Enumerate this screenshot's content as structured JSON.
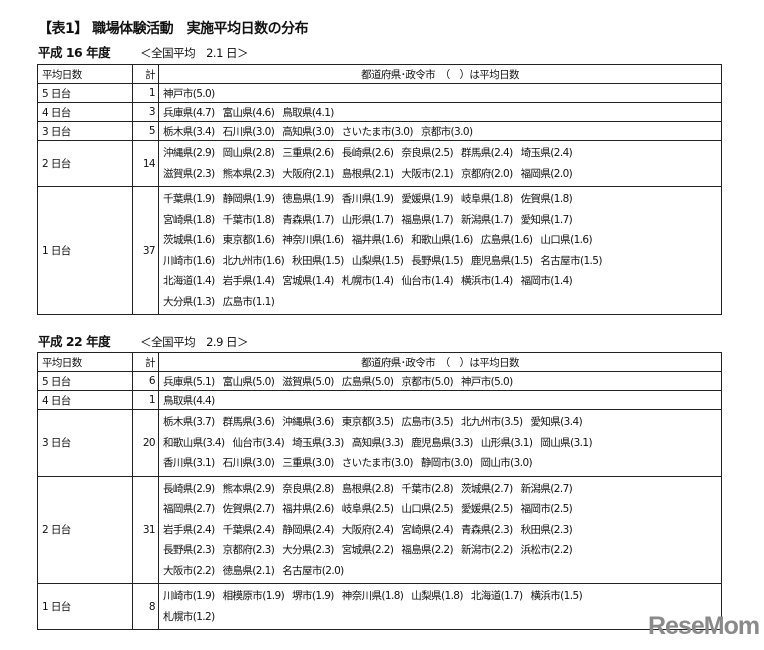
{
  "title": "【表1】 職場体験活動　実施平均日数の分布",
  "header": {
    "col1": "平均日数",
    "col2": "計",
    "col3": "都道府県･政令市　（　）は平均日数"
  },
  "tables": [
    {
      "year": "平成 16 年度",
      "average": "＜全国平均　2.1 日＞",
      "rows": [
        {
          "range": "5 日台",
          "count": "1",
          "lines": [
            [
              "神戸市(5.0)"
            ]
          ]
        },
        {
          "range": "4 日台",
          "count": "3",
          "lines": [
            [
              "兵庫県(4.7)",
              "富山県(4.6)",
              "鳥取県(4.1)"
            ]
          ]
        },
        {
          "range": "3 日台",
          "count": "5",
          "lines": [
            [
              "栃木県(3.4)",
              "石川県(3.0)",
              "高知県(3.0)",
              "さいたま市(3.0)",
              "京都市(3.0)"
            ]
          ]
        },
        {
          "range": "2 日台",
          "count": "14",
          "lines": [
            [
              "沖縄県(2.9)",
              "岡山県(2.8)",
              "三重県(2.6)",
              "長崎県(2.6)",
              "奈良県(2.5)",
              "群馬県(2.4)",
              "埼玉県(2.4)"
            ],
            [
              "滋賀県(2.3)",
              "熊本県(2.3)",
              "大阪府(2.1)",
              "島根県(2.1)",
              "大阪市(2.1)",
              "京都府(2.0)",
              "福岡県(2.0)"
            ]
          ]
        },
        {
          "range": "1 日台",
          "count": "37",
          "lines": [
            [
              "千葉県(1.9)",
              "静岡県(1.9)",
              "徳島県(1.9)",
              "香川県(1.9)",
              "愛媛県(1.9)",
              "岐阜県(1.8)",
              "佐賀県(1.8)"
            ],
            [
              "宮崎県(1.8)",
              "千葉市(1.8)",
              "青森県(1.7)",
              "山形県(1.7)",
              "福島県(1.7)",
              "新潟県(1.7)",
              "愛知県(1.7)"
            ],
            [
              "茨城県(1.6)",
              "東京都(1.6)",
              "神奈川県(1.6)",
              "福井県(1.6)",
              "和歌山県(1.6)",
              "広島県(1.6)",
              "山口県(1.6)"
            ],
            [
              "川崎市(1.6)",
              "北九州市(1.6)",
              "秋田県(1.5)",
              "山梨県(1.5)",
              "長野県(1.5)",
              "鹿児島県(1.5)",
              "名古屋市(1.5)"
            ],
            [
              "北海道(1.4)",
              "岩手県(1.4)",
              "宮城県(1.4)",
              "札幌市(1.4)",
              "仙台市(1.4)",
              "横浜市(1.4)",
              "福岡市(1.4)"
            ],
            [
              "大分県(1.3)",
              "広島市(1.1)"
            ]
          ]
        }
      ]
    },
    {
      "year": "平成 22 年度",
      "average": "＜全国平均　2.9 日＞",
      "rows": [
        {
          "range": "5 日台",
          "count": "6",
          "lines": [
            [
              "兵庫県(5.1)",
              "富山県(5.0)",
              "滋賀県(5.0)",
              "広島県(5.0)",
              "京都市(5.0)",
              "神戸市(5.0)"
            ]
          ]
        },
        {
          "range": "4 日台",
          "count": "1",
          "lines": [
            [
              "鳥取県(4.4)"
            ]
          ]
        },
        {
          "range": "3 日台",
          "count": "20",
          "lines": [
            [
              "栃木県(3.7)",
              "群馬県(3.6)",
              "沖縄県(3.6)",
              "東京都(3.5)",
              "広島市(3.5)",
              "北九州市(3.5)",
              "愛知県(3.4)"
            ],
            [
              "和歌山県(3.4)",
              "仙台市(3.4)",
              "埼玉県(3.3)",
              "高知県(3.3)",
              "鹿児島県(3.3)",
              "山形県(3.1)",
              "岡山県(3.1)"
            ],
            [
              "香川県(3.1)",
              "石川県(3.0)",
              "三重県(3.0)",
              "さいたま市(3.0)",
              "静岡市(3.0)",
              "岡山市(3.0)"
            ]
          ]
        },
        {
          "range": "2 日台",
          "count": "31",
          "lines": [
            [
              "長崎県(2.9)",
              "熊本県(2.9)",
              "奈良県(2.8)",
              "島根県(2.8)",
              "千葉市(2.8)",
              "茨城県(2.7)",
              "新潟県(2.7)"
            ],
            [
              "福岡県(2.7)",
              "佐賀県(2.7)",
              "福井県(2.6)",
              "岐阜県(2.5)",
              "山口県(2.5)",
              "愛媛県(2.5)",
              "福岡市(2.5)"
            ],
            [
              "岩手県(2.4)",
              "千葉県(2.4)",
              "静岡県(2.4)",
              "大阪府(2.4)",
              "宮崎県(2.4)",
              "青森県(2.3)",
              "秋田県(2.3)"
            ],
            [
              "長野県(2.3)",
              "京都府(2.3)",
              "大分県(2.3)",
              "宮城県(2.2)",
              "福島県(2.2)",
              "新潟市(2.2)",
              "浜松市(2.2)"
            ],
            [
              "大阪市(2.2)",
              "徳島県(2.1)",
              "名古屋市(2.0)"
            ]
          ]
        },
        {
          "range": "1 日台",
          "count": "8",
          "lines": [
            [
              "川崎市(1.9)",
              "相模原市(1.9)",
              "堺市(1.9)",
              "神奈川県(1.8)",
              "山梨県(1.8)",
              "北海道(1.7)",
              "横浜市(1.5)"
            ],
            [
              "札幌市(1.2)"
            ]
          ]
        }
      ]
    }
  ],
  "watermark": "ReseMom"
}
